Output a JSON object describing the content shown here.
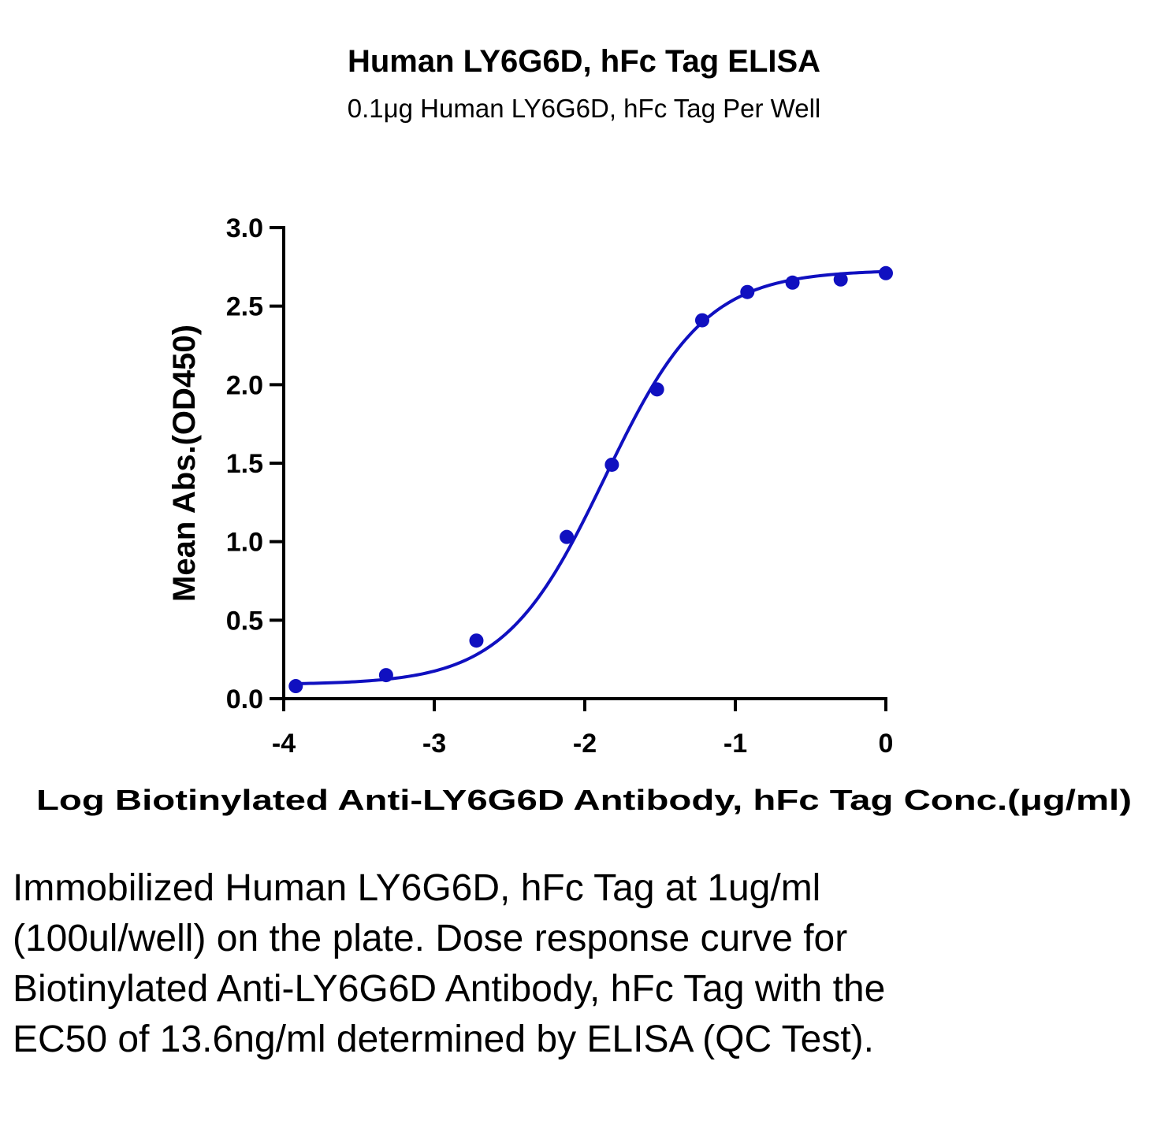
{
  "chart_data": {
    "type": "scatter",
    "title": "Human LY6G6D, hFc Tag ELISA",
    "subtitle": "0.1μg Human LY6G6D, hFc Tag Per Well",
    "xlabel": "Log Biotinylated Anti-LY6G6D Antibody, hFc Tag Conc.(μg/ml)",
    "ylabel": "Mean Abs.(OD450)",
    "xlim": [
      -4,
      0
    ],
    "ylim": [
      0,
      3
    ],
    "x_ticks": [
      -4,
      -3,
      -2,
      -1,
      0
    ],
    "x_tick_labels": [
      "-4",
      "-3",
      "-2",
      "-1",
      "0"
    ],
    "y_ticks": [
      0,
      0.5,
      1,
      1.5,
      2,
      2.5,
      3
    ],
    "y_tick_labels": [
      "0.0",
      "0.5",
      "1.0",
      "1.5",
      "2.0",
      "2.5",
      "3.0"
    ],
    "grid": false,
    "legend": false,
    "color": "#1010c0",
    "series": [
      {
        "x": [
          -3.92,
          -3.32,
          -2.72,
          -2.12,
          -1.82,
          -1.52,
          -1.22,
          -0.92,
          -0.62,
          -0.3,
          0.0
        ],
        "y": [
          0.08,
          0.15,
          0.37,
          1.03,
          1.49,
          1.97,
          2.41,
          2.59,
          2.65,
          2.67,
          2.71
        ],
        "fit": {
          "model": "4PL",
          "bottom": 0.09,
          "top": 2.73,
          "log_ec50": -1.866,
          "hill": 1.3
        }
      }
    ]
  },
  "caption": "Immobilized Human LY6G6D, hFc Tag at 1ug/ml (100ul/well) on the plate. Dose response curve for Biotinylated Anti-LY6G6D Antibody, hFc Tag with the EC50 of 13.6ng/ml determined by ELISA (QC Test)."
}
